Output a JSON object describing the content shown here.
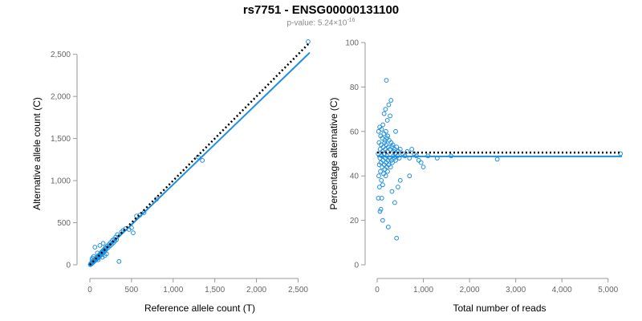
{
  "figure": {
    "title": "rs7751 - ENSG00000131100",
    "subtitle_prefix": "p-value: 5.24×10",
    "subtitle_exp": "-16"
  },
  "colors": {
    "points": "#1f8fe0",
    "fit_line": "#1f8fe0",
    "reference_line": "#000000",
    "axis": "#999999"
  },
  "chart_data": [
    {
      "type": "scatter",
      "xlabel": "Reference allele count (T)",
      "ylabel": "Alternative allele count (C)",
      "xlim": [
        0,
        2640
      ],
      "ylim": [
        0,
        2640
      ],
      "x_ticks": [
        0,
        500,
        1000,
        1500,
        2000,
        2500
      ],
      "x_tick_labels": [
        "0",
        "500",
        "1,000",
        "1,500",
        "2,000",
        "2,500"
      ],
      "y_ticks": [
        0,
        500,
        1000,
        1500,
        2000,
        2500
      ],
      "y_tick_labels": [
        "0",
        "500",
        "1,000",
        "1,500",
        "2,000",
        "2,500"
      ],
      "points": [
        [
          5,
          3
        ],
        [
          8,
          10
        ],
        [
          10,
          6
        ],
        [
          12,
          15
        ],
        [
          15,
          9
        ],
        [
          18,
          20
        ],
        [
          20,
          14
        ],
        [
          22,
          25
        ],
        [
          25,
          18
        ],
        [
          28,
          30
        ],
        [
          30,
          22
        ],
        [
          32,
          35
        ],
        [
          35,
          28
        ],
        [
          38,
          40
        ],
        [
          40,
          32
        ],
        [
          42,
          45
        ],
        [
          45,
          38
        ],
        [
          48,
          50
        ],
        [
          50,
          42
        ],
        [
          52,
          55
        ],
        [
          55,
          46
        ],
        [
          58,
          60
        ],
        [
          60,
          50
        ],
        [
          62,
          66
        ],
        [
          65,
          55
        ],
        [
          68,
          70
        ],
        [
          70,
          60
        ],
        [
          72,
          76
        ],
        [
          75,
          64
        ],
        [
          78,
          82
        ],
        [
          80,
          70
        ],
        [
          85,
          88
        ],
        [
          88,
          75
        ],
        [
          90,
          95
        ],
        [
          95,
          82
        ],
        [
          100,
          105
        ],
        [
          105,
          90
        ],
        [
          110,
          115
        ],
        [
          115,
          100
        ],
        [
          120,
          125
        ],
        [
          125,
          108
        ],
        [
          130,
          135
        ],
        [
          135,
          118
        ],
        [
          140,
          148
        ],
        [
          145,
          126
        ],
        [
          150,
          160
        ],
        [
          155,
          140
        ],
        [
          160,
          170
        ],
        [
          165,
          150
        ],
        [
          170,
          180
        ],
        [
          175,
          160
        ],
        [
          180,
          195
        ],
        [
          185,
          170
        ],
        [
          190,
          205
        ],
        [
          200,
          190
        ],
        [
          210,
          225
        ],
        [
          220,
          205
        ],
        [
          230,
          245
        ],
        [
          240,
          225
        ],
        [
          250,
          265
        ],
        [
          260,
          240
        ],
        [
          270,
          290
        ],
        [
          280,
          260
        ],
        [
          290,
          305
        ],
        [
          300,
          280
        ],
        [
          310,
          330
        ],
        [
          320,
          300
        ],
        [
          60,
          210
        ],
        [
          120,
          230
        ],
        [
          160,
          255
        ],
        [
          30,
          80
        ],
        [
          45,
          100
        ],
        [
          25,
          60
        ],
        [
          100,
          60
        ],
        [
          150,
          90
        ],
        [
          200,
          130
        ],
        [
          90,
          140
        ],
        [
          180,
          110
        ],
        [
          350,
          40
        ],
        [
          330,
          360
        ],
        [
          380,
          390
        ],
        [
          400,
          410
        ],
        [
          430,
          430
        ],
        [
          470,
          420
        ],
        [
          500,
          440
        ],
        [
          520,
          380
        ],
        [
          560,
          580
        ],
        [
          600,
          590
        ],
        [
          650,
          620
        ],
        [
          800,
          780
        ],
        [
          1300,
          1280
        ],
        [
          1350,
          1240
        ],
        [
          2620,
          2650
        ]
      ],
      "fit_line": [
        [
          0,
          0
        ],
        [
          2640,
          2520
        ]
      ],
      "reference_line": [
        [
          0,
          0
        ],
        [
          2640,
          2640
        ]
      ]
    },
    {
      "type": "scatter",
      "xlabel": "Total number of reads",
      "ylabel": "Percentage alternative (C)",
      "xlim": [
        0,
        5300
      ],
      "ylim": [
        0,
        100
      ],
      "x_ticks": [
        0,
        1000,
        2000,
        3000,
        4000,
        5000
      ],
      "x_tick_labels": [
        "0",
        "1,000",
        "2,000",
        "3,000",
        "4,000",
        "5,000"
      ],
      "y_ticks": [
        0,
        20,
        40,
        60,
        80,
        100
      ],
      "y_tick_labels": [
        "0",
        "20",
        "40",
        "60",
        "80",
        "100"
      ],
      "points": [
        [
          20,
          50
        ],
        [
          25,
          30
        ],
        [
          30,
          60
        ],
        [
          35,
          40
        ],
        [
          40,
          55
        ],
        [
          45,
          45
        ],
        [
          50,
          35
        ],
        [
          55,
          62
        ],
        [
          60,
          48
        ],
        [
          65,
          52
        ],
        [
          70,
          42
        ],
        [
          75,
          58
        ],
        [
          80,
          46
        ],
        [
          85,
          54
        ],
        [
          90,
          38
        ],
        [
          95,
          61
        ],
        [
          100,
          49
        ],
        [
          105,
          44
        ],
        [
          110,
          57
        ],
        [
          115,
          51
        ],
        [
          120,
          36
        ],
        [
          125,
          63
        ],
        [
          130,
          47
        ],
        [
          135,
          53
        ],
        [
          140,
          41
        ],
        [
          145,
          59
        ],
        [
          150,
          50
        ],
        [
          155,
          45
        ],
        [
          160,
          55
        ],
        [
          165,
          43
        ],
        [
          170,
          56
        ],
        [
          175,
          48
        ],
        [
          180,
          52
        ],
        [
          185,
          40
        ],
        [
          190,
          60
        ],
        [
          195,
          46
        ],
        [
          200,
          54
        ],
        [
          205,
          44
        ],
        [
          210,
          57
        ],
        [
          215,
          49
        ],
        [
          220,
          51
        ],
        [
          225,
          42
        ],
        [
          230,
          58
        ],
        [
          235,
          47
        ],
        [
          240,
          53
        ],
        [
          250,
          45
        ],
        [
          260,
          56
        ],
        [
          270,
          48
        ],
        [
          280,
          52
        ],
        [
          290,
          44
        ],
        [
          300,
          55
        ],
        [
          310,
          47
        ],
        [
          320,
          53
        ],
        [
          330,
          46
        ],
        [
          340,
          54
        ],
        [
          350,
          49
        ],
        [
          360,
          51
        ],
        [
          370,
          48
        ],
        [
          380,
          52
        ],
        [
          390,
          50
        ],
        [
          400,
          47
        ],
        [
          420,
          53
        ],
        [
          440,
          49
        ],
        [
          460,
          51
        ],
        [
          480,
          48
        ],
        [
          500,
          52
        ],
        [
          550,
          50
        ],
        [
          600,
          49
        ],
        [
          650,
          51
        ],
        [
          700,
          48
        ],
        [
          750,
          52
        ],
        [
          800,
          50
        ],
        [
          850,
          49
        ],
        [
          900,
          47
        ],
        [
          950,
          46
        ],
        [
          1000,
          44
        ],
        [
          1100,
          49
        ],
        [
          1300,
          48
        ],
        [
          1600,
          49
        ],
        [
          2600,
          47.5
        ],
        [
          5270,
          50
        ],
        [
          200,
          83
        ],
        [
          300,
          74
        ],
        [
          250,
          72
        ],
        [
          180,
          70
        ],
        [
          220,
          65
        ],
        [
          280,
          67
        ],
        [
          150,
          68
        ],
        [
          100,
          30
        ],
        [
          80,
          25
        ],
        [
          60,
          24
        ],
        [
          120,
          20
        ],
        [
          240,
          17
        ],
        [
          420,
          12
        ],
        [
          380,
          28
        ],
        [
          320,
          33
        ],
        [
          450,
          35
        ],
        [
          700,
          40
        ],
        [
          500,
          38
        ],
        [
          400,
          60
        ]
      ],
      "fit_line": [
        [
          0,
          48.8
        ],
        [
          5300,
          48.8
        ]
      ],
      "reference_line": [
        [
          0,
          50.5
        ],
        [
          5300,
          50.5
        ]
      ]
    }
  ]
}
